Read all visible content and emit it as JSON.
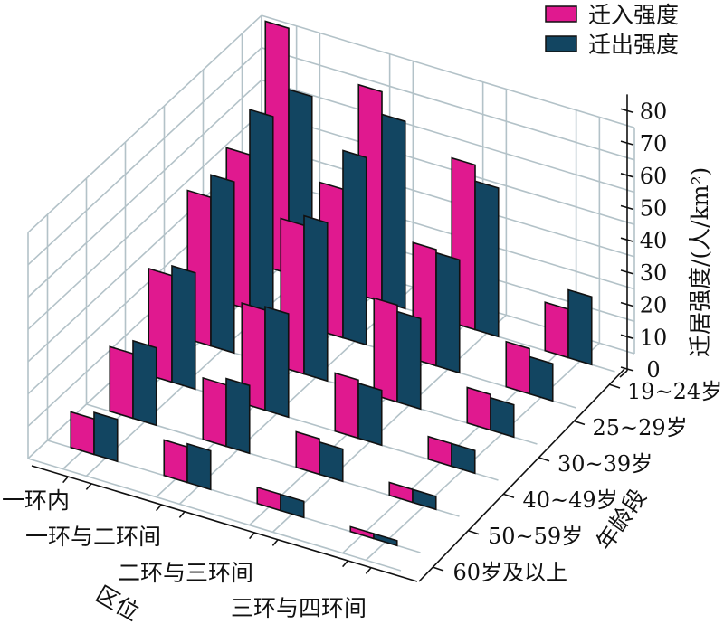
{
  "chart_data": {
    "type": "bar",
    "subtype": "3d-grouped-bar",
    "title": "",
    "xlabel": "区位",
    "ylabel": "年龄段",
    "zlabel": "迁居强度/(人/km²)",
    "regions": [
      "一环内",
      "一环与二环间",
      "二环与三环间",
      "三环与四环间"
    ],
    "age_groups": [
      "19~24岁",
      "25~29岁",
      "30~39岁",
      "40~49岁",
      "50~59岁",
      "60岁及以上"
    ],
    "zlim": [
      0,
      80
    ],
    "zticks": [
      0,
      10,
      20,
      30,
      40,
      50,
      60,
      70,
      80
    ],
    "grid": true,
    "legend_position": "top-right",
    "series": [
      {
        "name": "迁入强度",
        "color": "#e0198f",
        "values": [
          [
            76,
            48,
            46,
            33,
            20,
            11
          ],
          [
            65,
            46,
            46,
            31,
            19,
            11
          ],
          [
            51,
            36,
            30,
            18,
            11,
            5
          ],
          [
            15,
            14,
            11,
            7,
            4,
            1.5
          ]
        ]
      },
      {
        "name": "迁出强度",
        "color": "#124561",
        "values": [
          [
            57,
            62,
            53,
            36,
            24,
            13
          ],
          [
            58,
            58,
            49,
            32,
            21,
            12
          ],
          [
            46,
            35,
            28,
            17,
            10,
            5
          ],
          [
            21,
            11.5,
            10,
            7,
            4,
            1.5
          ]
        ]
      }
    ]
  }
}
